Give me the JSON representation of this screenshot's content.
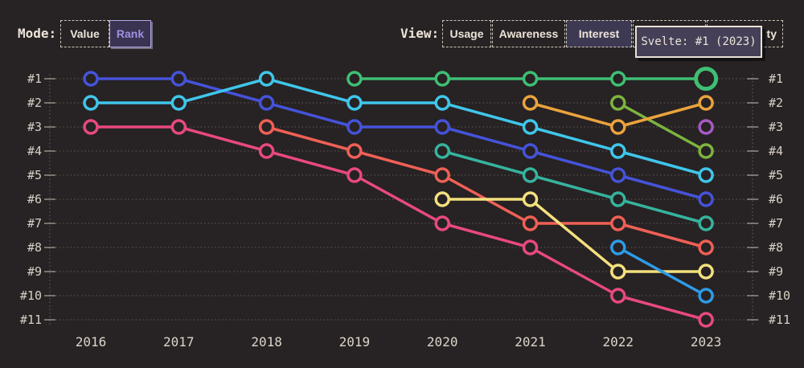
{
  "colors": {
    "background": "#272223",
    "text": "#ece4d9",
    "grid": "#b7afa4",
    "selected_purple": "#a18fe3"
  },
  "mode_control": {
    "label": "Mode:",
    "options": [
      {
        "label": "Value",
        "selected": false
      },
      {
        "label": "Rank",
        "selected": true
      }
    ]
  },
  "view_control": {
    "label": "View:",
    "options": [
      {
        "label": "Usage",
        "selected": false
      },
      {
        "label": "Awareness",
        "selected": false
      },
      {
        "label": "Interest",
        "selected": true
      },
      {
        "label": "",
        "selected": false
      },
      {
        "label": "ty",
        "selected": false
      }
    ]
  },
  "tooltip": {
    "text": "Svelte: #1 (2023)"
  },
  "chart_data": {
    "type": "line",
    "variant": "bump-rank-chart",
    "x": [
      2016,
      2017,
      2018,
      2019,
      2020,
      2021,
      2022,
      2023
    ],
    "left_axis_labels": [
      "#1",
      "#2",
      "#3",
      "#4",
      "#5",
      "#6",
      "#7",
      "#8",
      "#9",
      "#10",
      "#11"
    ],
    "right_axis_labels": [
      "#1",
      "#2",
      "#3",
      "#4",
      "#5",
      "#6",
      "#7",
      "#8",
      "#9",
      "#10",
      "#11"
    ],
    "rank_range": [
      1,
      11
    ],
    "grid": "dotted-horizontal",
    "legend": "none",
    "highlight": {
      "series_id": "svelte",
      "year": 2023,
      "rank": 1
    },
    "series": [
      {
        "id": "pink",
        "name": "",
        "color": "#e8497f",
        "ranks": [
          3,
          3,
          4,
          5,
          7,
          8,
          10,
          11
        ]
      },
      {
        "id": "blue",
        "name": "",
        "color": "#4553d9",
        "ranks": [
          1,
          1,
          2,
          3,
          3,
          4,
          5,
          6
        ]
      },
      {
        "id": "cyan",
        "name": "",
        "color": "#3fc6ea",
        "ranks": [
          2,
          2,
          1,
          2,
          2,
          3,
          4,
          5
        ]
      },
      {
        "id": "salmon",
        "name": "",
        "color": "#ef6056",
        "ranks": [
          null,
          null,
          3,
          4,
          5,
          7,
          7,
          8
        ]
      },
      {
        "id": "teal",
        "name": "",
        "color": "#36b39e",
        "ranks": [
          null,
          null,
          null,
          null,
          4,
          5,
          6,
          7
        ]
      },
      {
        "id": "yellow",
        "name": "",
        "color": "#f3e07e",
        "ranks": [
          null,
          null,
          null,
          null,
          6,
          6,
          9,
          9
        ]
      },
      {
        "id": "lime",
        "name": "",
        "color": "#7cb43f",
        "ranks": [
          null,
          null,
          null,
          null,
          null,
          null,
          2,
          4
        ]
      },
      {
        "id": "azure",
        "name": "",
        "color": "#2d9ce8",
        "ranks": [
          null,
          null,
          null,
          null,
          null,
          null,
          8,
          10
        ]
      },
      {
        "id": "orange",
        "name": "",
        "color": "#eaa33c",
        "ranks": [
          null,
          null,
          null,
          null,
          null,
          2,
          3,
          2
        ]
      },
      {
        "id": "purple",
        "name": "",
        "color": "#a65ac4",
        "ranks": [
          null,
          null,
          null,
          null,
          null,
          null,
          null,
          3
        ]
      },
      {
        "id": "svelte",
        "name": "Svelte",
        "color": "#3ebf74",
        "ranks": [
          null,
          null,
          null,
          1,
          1,
          1,
          1,
          1
        ]
      }
    ]
  }
}
